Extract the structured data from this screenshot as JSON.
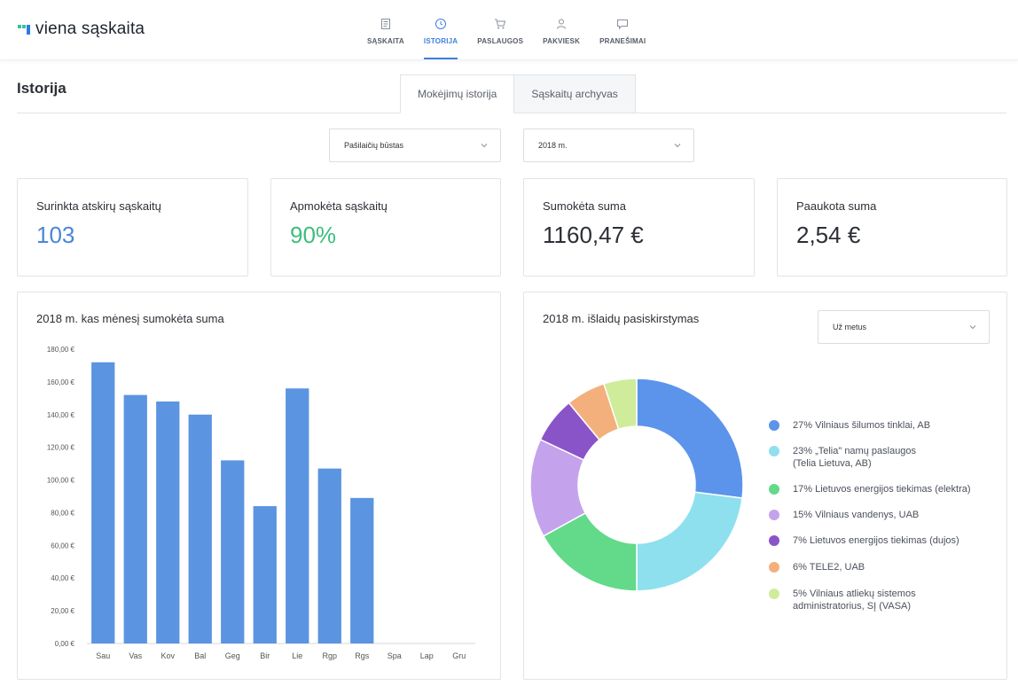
{
  "brand": {
    "name": "viena sąskaita"
  },
  "nav": [
    {
      "label": "SĄSKAITA",
      "icon": "document-icon",
      "active": false
    },
    {
      "label": "ISTORIJA",
      "icon": "clock-icon",
      "active": true
    },
    {
      "label": "PASLAUGOS",
      "icon": "cart-icon",
      "active": false
    },
    {
      "label": "PAKVIESK",
      "icon": "user-icon",
      "active": false
    },
    {
      "label": "PRANEŠIMAI",
      "icon": "message-icon",
      "active": false
    }
  ],
  "page": {
    "title": "Istorija"
  },
  "tabs": [
    {
      "label": "Mokėjimų istorija",
      "active": true
    },
    {
      "label": "Sąskaitų archyvas",
      "active": false
    }
  ],
  "filters": {
    "property": "Pašilaičių būstas",
    "year": "2018 m."
  },
  "stats": [
    {
      "label": "Surinkta atskirų sąskaitų",
      "value": "103",
      "color": "#4a86d8"
    },
    {
      "label": "Apmokėta sąskaitų",
      "value": "90%",
      "color": "#3dbd7d"
    },
    {
      "label": "Sumokėta suma",
      "value": "1160,47 €",
      "color": "#2c2f36"
    },
    {
      "label": "Paaukota suma",
      "value": "2,54 €",
      "color": "#2c2f36"
    }
  ],
  "bar_panel": {
    "title": "2018 m. kas mėnesį sumokėta suma"
  },
  "donut_panel": {
    "title": "2018 m. išlaidų pasiskirstymas",
    "period": "Už metus"
  },
  "chart_data": [
    {
      "type": "bar",
      "title": "2018 m. kas mėnesį sumokėta suma",
      "categories": [
        "Sau",
        "Vas",
        "Kov",
        "Bal",
        "Geg",
        "Bir",
        "Lie",
        "Rgp",
        "Rgs",
        "Spa",
        "Lap",
        "Gru"
      ],
      "values": [
        172,
        152,
        148,
        140,
        112,
        84,
        156,
        107,
        89,
        null,
        null,
        null
      ],
      "ylim": [
        0,
        180
      ],
      "yticks": [
        0,
        20,
        40,
        60,
        80,
        100,
        120,
        140,
        160,
        180
      ],
      "ytick_labels": [
        "0,00 €",
        "20,00 €",
        "40,00 €",
        "60,00 €",
        "80,00 €",
        "100,00 €",
        "120,00 €",
        "140,00 €",
        "160,00 €",
        "180,00 €"
      ],
      "color": "#5b94e0",
      "grid": false
    },
    {
      "type": "pie",
      "title": "2018 m. išlaidų pasiskirstymas",
      "donut": true,
      "slices": [
        {
          "label": "27% Vilniaus šilumos tinklai, AB",
          "value": 27,
          "color": "#5b94ea"
        },
        {
          "label": "23% „Telia\" namų paslaugos\n(Telia Lietuva, AB)",
          "value": 23,
          "color": "#8fe0ee"
        },
        {
          "label": "17% Lietuvos energijos tiekimas (elektra)",
          "value": 17,
          "color": "#63d98a"
        },
        {
          "label": "15% Vilniaus vandenys, UAB",
          "value": 15,
          "color": "#c4a3ec"
        },
        {
          "label": "7% Lietuvos energijos tiekimas (dujos)",
          "value": 7,
          "color": "#8a54c9"
        },
        {
          "label": "6% TELE2, UAB",
          "value": 6,
          "color": "#f4b07c"
        },
        {
          "label": "5% Vilniaus atliekų sistemos\nadministratorius, SĮ (VASA)",
          "value": 5,
          "color": "#cfec9a"
        }
      ],
      "legend_position": "right"
    }
  ]
}
